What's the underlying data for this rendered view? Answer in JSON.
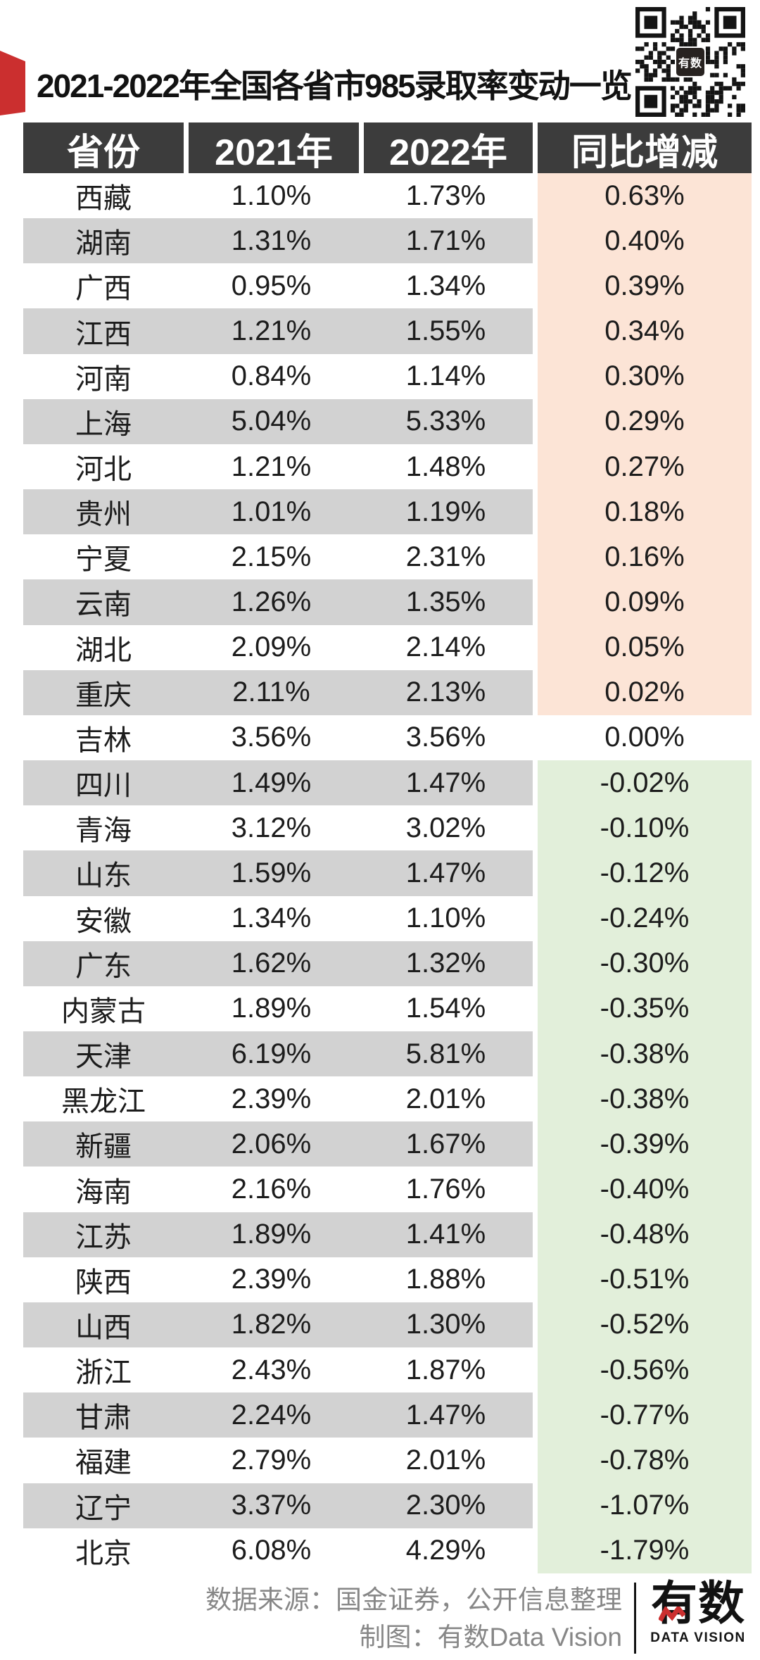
{
  "title": "2021-2022年全国各省市985录取率变动一览",
  "qr": {
    "center_label": "有数"
  },
  "chart_data": {
    "type": "table",
    "title": "2021-2022年全国各省市985录取率变动一览",
    "columns": [
      "省份",
      "2021年",
      "2022年",
      "同比增减"
    ],
    "rows": [
      [
        "西藏",
        "1.10%",
        "1.73%",
        "0.63%"
      ],
      [
        "湖南",
        "1.31%",
        "1.71%",
        "0.40%"
      ],
      [
        "广西",
        "0.95%",
        "1.34%",
        "0.39%"
      ],
      [
        "江西",
        "1.21%",
        "1.55%",
        "0.34%"
      ],
      [
        "河南",
        "0.84%",
        "1.14%",
        "0.30%"
      ],
      [
        "上海",
        "5.04%",
        "5.33%",
        "0.29%"
      ],
      [
        "河北",
        "1.21%",
        "1.48%",
        "0.27%"
      ],
      [
        "贵州",
        "1.01%",
        "1.19%",
        "0.18%"
      ],
      [
        "宁夏",
        "2.15%",
        "2.31%",
        "0.16%"
      ],
      [
        "云南",
        "1.26%",
        "1.35%",
        "0.09%"
      ],
      [
        "湖北",
        "2.09%",
        "2.14%",
        "0.05%"
      ],
      [
        "重庆",
        "2.11%",
        "2.13%",
        "0.02%"
      ],
      [
        "吉林",
        "3.56%",
        "3.56%",
        "0.00%"
      ],
      [
        "四川",
        "1.49%",
        "1.47%",
        "-0.02%"
      ],
      [
        "青海",
        "3.12%",
        "3.02%",
        "-0.10%"
      ],
      [
        "山东",
        "1.59%",
        "1.47%",
        "-0.12%"
      ],
      [
        "安徽",
        "1.34%",
        "1.10%",
        "-0.24%"
      ],
      [
        "广东",
        "1.62%",
        "1.32%",
        "-0.30%"
      ],
      [
        "内蒙古",
        "1.89%",
        "1.54%",
        "-0.35%"
      ],
      [
        "天津",
        "6.19%",
        "5.81%",
        "-0.38%"
      ],
      [
        "黑龙江",
        "2.39%",
        "2.01%",
        "-0.38%"
      ],
      [
        "新疆",
        "2.06%",
        "1.67%",
        "-0.39%"
      ],
      [
        "海南",
        "2.16%",
        "1.76%",
        "-0.40%"
      ],
      [
        "江苏",
        "1.89%",
        "1.41%",
        "-0.48%"
      ],
      [
        "陕西",
        "2.39%",
        "1.88%",
        "-0.51%"
      ],
      [
        "山西",
        "1.82%",
        "1.30%",
        "-0.52%"
      ],
      [
        "浙江",
        "2.43%",
        "1.87%",
        "-0.56%"
      ],
      [
        "甘肃",
        "2.24%",
        "1.47%",
        "-0.77%"
      ],
      [
        "福建",
        "2.79%",
        "2.01%",
        "-0.78%"
      ],
      [
        "辽宁",
        "3.37%",
        "2.30%",
        "-1.07%"
      ],
      [
        "北京",
        "6.08%",
        "4.29%",
        "-1.79%"
      ]
    ]
  },
  "footer": {
    "source_line": "数据来源：国金证券，公开信息整理",
    "credit_line": "制图：有数Data Vision",
    "logo_text": "有数",
    "logo_subtext": "DATA VISION"
  },
  "colors": {
    "accent_red": "#cb2f2f",
    "header_bg": "#3c3c3c",
    "stripe_bg": "#d2d2d2",
    "positive_bg": "#fce4d6",
    "negative_bg": "#e2efda",
    "zero_bg": "#ffffff",
    "text_dark": "#1c1c1c",
    "footer_gray": "#878787"
  }
}
